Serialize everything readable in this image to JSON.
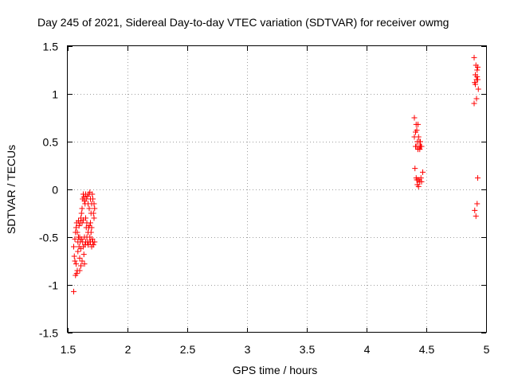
{
  "chart_data": {
    "type": "scatter",
    "title": "Day 245 of 2021, Sidereal Day-to-day VTEC variation (SDTVAR) for receiver owmg",
    "xlabel": "GPS time / hours",
    "ylabel": "SDTVAR / TECUs",
    "xlim": [
      1.5,
      5
    ],
    "ylim": [
      -1.5,
      1.5
    ],
    "xticks": [
      1.5,
      2,
      2.5,
      3,
      3.5,
      4,
      4.5,
      5
    ],
    "yticks": [
      -1.5,
      -1,
      -0.5,
      0,
      0.5,
      1,
      1.5
    ],
    "xtick_labels": [
      "1.5",
      "2",
      "2.5",
      "3",
      "3.5",
      "4",
      "4.5",
      "5"
    ],
    "ytick_labels": [
      "-1.5",
      "-1",
      "-0.5",
      "0",
      "0.5",
      "1",
      "1.5"
    ],
    "grid": true,
    "marker": "plus",
    "series": [
      {
        "name": "SDTVAR",
        "color": "#ff0000",
        "x": [
          1.55,
          1.55,
          1.555,
          1.56,
          1.56,
          1.565,
          1.565,
          1.57,
          1.57,
          1.575,
          1.575,
          1.58,
          1.58,
          1.585,
          1.585,
          1.59,
          1.59,
          1.595,
          1.595,
          1.6,
          1.6,
          1.6,
          1.605,
          1.605,
          1.61,
          1.61,
          1.61,
          1.615,
          1.615,
          1.62,
          1.62,
          1.62,
          1.625,
          1.625,
          1.63,
          1.63,
          1.63,
          1.635,
          1.635,
          1.64,
          1.64,
          1.64,
          1.645,
          1.645,
          1.65,
          1.65,
          1.65,
          1.655,
          1.655,
          1.66,
          1.66,
          1.665,
          1.665,
          1.67,
          1.67,
          1.67,
          1.675,
          1.675,
          1.68,
          1.68,
          1.68,
          1.685,
          1.685,
          1.69,
          1.69,
          1.69,
          1.695,
          1.695,
          1.7,
          1.7,
          1.7,
          1.705,
          1.705,
          1.71,
          1.71,
          1.715,
          1.715,
          1.72,
          1.72,
          1.725,
          1.725,
          4.4,
          4.4,
          4.405,
          4.41,
          4.41,
          4.415,
          4.415,
          4.42,
          4.42,
          4.42,
          4.425,
          4.425,
          4.43,
          4.43,
          4.43,
          4.435,
          4.435,
          4.44,
          4.44,
          4.44,
          4.445,
          4.445,
          4.45,
          4.45,
          4.455,
          4.455,
          4.46,
          4.46,
          4.47,
          4.9,
          4.9,
          4.905,
          4.905,
          4.91,
          4.91,
          4.915,
          4.915,
          4.92,
          4.92,
          4.925,
          4.925,
          4.925,
          4.93,
          4.93,
          4.93,
          4.935
        ],
        "y": [
          -0.6,
          -1.07,
          -0.7,
          -0.52,
          -0.75,
          -0.45,
          -0.9,
          -0.4,
          -0.78,
          -0.35,
          -0.88,
          -0.45,
          -0.85,
          -0.55,
          -0.65,
          -0.5,
          -0.33,
          -0.6,
          -0.38,
          -0.5,
          -0.72,
          -0.85,
          -0.55,
          -0.35,
          -0.3,
          -0.62,
          -0.8,
          -0.25,
          -0.52,
          -0.35,
          -0.2,
          -0.75,
          -0.1,
          -0.55,
          -0.32,
          -0.05,
          -0.6,
          -0.08,
          -0.68,
          -0.12,
          -0.5,
          -0.78,
          -0.15,
          -0.58,
          -0.05,
          -0.3,
          -0.55,
          -0.4,
          -0.1,
          -0.5,
          -0.35,
          -0.07,
          -0.55,
          -0.15,
          -0.45,
          -0.58,
          -0.05,
          -0.4,
          -0.2,
          -0.38,
          -0.55,
          -0.03,
          -0.5,
          -0.1,
          -0.35,
          -0.55,
          -0.25,
          -0.45,
          -0.15,
          -0.4,
          -0.6,
          -0.05,
          -0.52,
          -0.1,
          -0.55,
          -0.25,
          -0.58,
          -0.15,
          -0.3,
          -0.2,
          -0.55,
          0.75,
          0.55,
          0.22,
          0.6,
          0.45,
          0.12,
          0.68,
          0.45,
          0.62,
          0.1,
          0.5,
          0.05,
          0.68,
          0.42,
          0.1,
          0.55,
          0.03,
          0.45,
          0.5,
          0.1,
          0.42,
          0.08,
          0.5,
          0.45,
          0.12,
          0.45,
          0.45,
          0.08,
          0.18,
          1.38,
          0.9,
          1.12,
          -0.22,
          1.2,
          1.1,
          1.3,
          -0.28,
          1.15,
          0.95,
          1.25,
          1.18,
          -0.15,
          1.28,
          1.15,
          0.12,
          1.05
        ]
      }
    ]
  }
}
